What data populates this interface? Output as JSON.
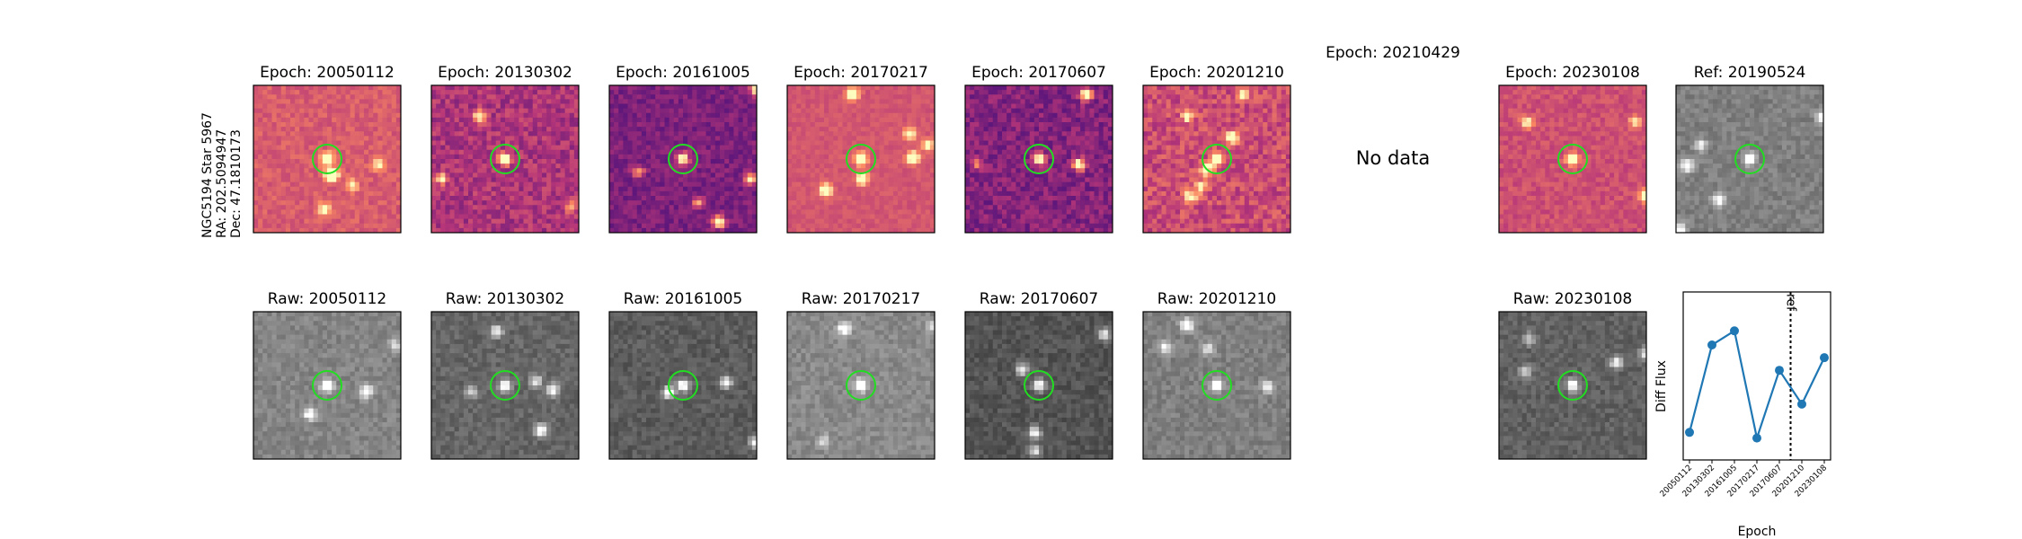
{
  "target": {
    "name": "NGC5194 Star 5967",
    "ra": "RA: 202.5094947",
    "dec": "Dec: 47.1810173"
  },
  "no_data_label": "No data",
  "diff_panels": [
    {
      "title": "Epoch: 20050112",
      "has_data": true,
      "colormap": "magma",
      "seed": 11,
      "level": 0.62,
      "contrast": 0.45
    },
    {
      "title": "Epoch: 20130302",
      "has_data": true,
      "colormap": "magma",
      "seed": 23,
      "level": 0.48,
      "contrast": 0.75
    },
    {
      "title": "Epoch: 20161005",
      "has_data": true,
      "colormap": "magma",
      "seed": 37,
      "level": 0.36,
      "contrast": 0.55
    },
    {
      "title": "Epoch: 20170217",
      "has_data": true,
      "colormap": "magma",
      "seed": 41,
      "level": 0.6,
      "contrast": 0.3
    },
    {
      "title": "Epoch: 20170607",
      "has_data": true,
      "colormap": "magma",
      "seed": 53,
      "level": 0.38,
      "contrast": 0.7
    },
    {
      "title": "Epoch: 20201210",
      "has_data": true,
      "colormap": "magma",
      "seed": 67,
      "level": 0.57,
      "contrast": 0.8
    },
    {
      "title": "Epoch: 20210429",
      "has_data": false
    },
    {
      "title": "Epoch: 20230108",
      "has_data": true,
      "colormap": "magma",
      "seed": 79,
      "level": 0.58,
      "contrast": 0.45
    }
  ],
  "ref_panel": {
    "title": "Ref: 20190524",
    "colormap": "gray",
    "seed": 91,
    "level": 0.5
  },
  "raw_panels": [
    {
      "title": "Raw: 20050112",
      "has_data": true,
      "colormap": "gray",
      "seed": 101,
      "level": 0.52
    },
    {
      "title": "Raw: 20130302",
      "has_data": true,
      "colormap": "gray",
      "seed": 113,
      "level": 0.4
    },
    {
      "title": "Raw: 20161005",
      "has_data": true,
      "colormap": "gray",
      "seed": 127,
      "level": 0.36
    },
    {
      "title": "Raw: 20170217",
      "has_data": true,
      "colormap": "gray",
      "seed": 131,
      "level": 0.54
    },
    {
      "title": "Raw: 20170607",
      "has_data": true,
      "colormap": "gray",
      "seed": 149,
      "level": 0.33
    },
    {
      "title": "Raw: 20201210",
      "has_data": true,
      "colormap": "gray",
      "seed": 151,
      "level": 0.5
    },
    {
      "title": "",
      "has_data": false
    },
    {
      "title": "Raw: 20230108",
      "has_data": true,
      "colormap": "gray",
      "seed": 163,
      "level": 0.38
    }
  ],
  "chart_data": {
    "type": "line",
    "title": "",
    "xlabel": "Epoch",
    "ylabel": "Diff Flux",
    "categories": [
      "20050112",
      "20130302",
      "20161005",
      "20170217",
      "20170607",
      "20201210",
      "20230108"
    ],
    "values": [
      0.1,
      0.72,
      0.82,
      0.06,
      0.54,
      0.3,
      0.63
    ],
    "ylim": [
      0.0,
      1.0
    ],
    "color": "#1f77b4",
    "y_ticks_shown": false,
    "ref_marker": {
      "label": "ref",
      "position_between": [
        "20170607",
        "20201210"
      ],
      "style": "dotted"
    }
  }
}
